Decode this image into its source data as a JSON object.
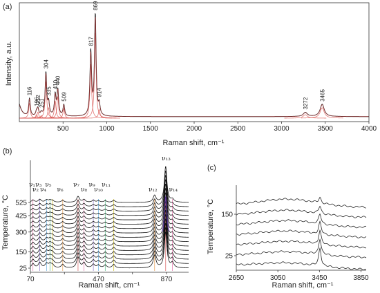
{
  "chart_data": [
    {
      "panel": "(a)",
      "type": "line",
      "xlabel": "Raman shift, cm⁻¹",
      "ylabel": "Intensity, a.u.",
      "xlim": [
        0,
        4000
      ],
      "x_ticks": [
        500,
        1000,
        1500,
        2000,
        2500,
        3000,
        3500,
        4000
      ],
      "peaks": [
        {
          "x": 116,
          "label": "116",
          "h": 0.17
        },
        {
          "x": 196,
          "label": "196",
          "h": 0.04
        },
        {
          "x": 212,
          "label": "212",
          "h": 0.07
        },
        {
          "x": 251,
          "label": "251",
          "h": 0.03
        },
        {
          "x": 304,
          "label": "304",
          "h": 0.42
        },
        {
          "x": 335,
          "label": "335",
          "h": 0.12
        },
        {
          "x": 410,
          "label": "410",
          "h": 0.2
        },
        {
          "x": 440,
          "label": "440",
          "h": 0.25
        },
        {
          "x": 509,
          "label": "509",
          "h": 0.11
        },
        {
          "x": 817,
          "label": "817",
          "h": 0.62
        },
        {
          "x": 869,
          "label": "869",
          "h": 0.98
        },
        {
          "x": 914,
          "label": "914",
          "h": 0.1
        },
        {
          "x": 3272,
          "label": "3272",
          "h": 0.04
        },
        {
          "x": 3465,
          "label": "3465",
          "h": 0.12
        }
      ]
    },
    {
      "panel": "(b)",
      "type": "line",
      "xlabel": "Raman shift, cm⁻¹",
      "ylabel": "Temperature, °C",
      "xlim": [
        70,
        1000
      ],
      "x_ticks": [
        70,
        270,
        470,
        670,
        870
      ],
      "x_tick_labels": [
        "70",
        "",
        "470",
        "",
        "870"
      ],
      "y_ticks": [
        25,
        150,
        300,
        425,
        525
      ],
      "temperature_range": [
        25,
        525
      ],
      "peaks": [
        85,
        125,
        165,
        185,
        200,
        260,
        350,
        385,
        440,
        470,
        510,
        560,
        800,
        865,
        905
      ],
      "nu_labels": [
        {
          "x": 80,
          "label": "ν₁"
        },
        {
          "x": 100,
          "label": "ν₂"
        },
        {
          "x": 118,
          "label": "ν₃"
        },
        {
          "x": 145,
          "label": "ν₄"
        },
        {
          "x": 175,
          "label": "ν₅"
        },
        {
          "x": 245,
          "label": "ν₆"
        },
        {
          "x": 340,
          "label": "ν₇"
        },
        {
          "x": 385,
          "label": "ν₈"
        },
        {
          "x": 432,
          "label": "ν₉"
        },
        {
          "x": 470,
          "label": "ν₁₀"
        },
        {
          "x": 515,
          "label": "ν₁₁"
        },
        {
          "x": 790,
          "label": "ν₁₂"
        },
        {
          "x": 868,
          "label": "ν₁₃"
        },
        {
          "x": 910,
          "label": "ν₁₄"
        }
      ]
    },
    {
      "panel": "(c)",
      "type": "line",
      "xlabel": "Raman shift, cm⁻¹",
      "ylabel": "Temperature, °C",
      "xlim": [
        2650,
        3900
      ],
      "x_ticks": [
        2650,
        3050,
        3450,
        3850
      ],
      "y_ticks": [
        25,
        150
      ],
      "peak": 3455
    }
  ]
}
